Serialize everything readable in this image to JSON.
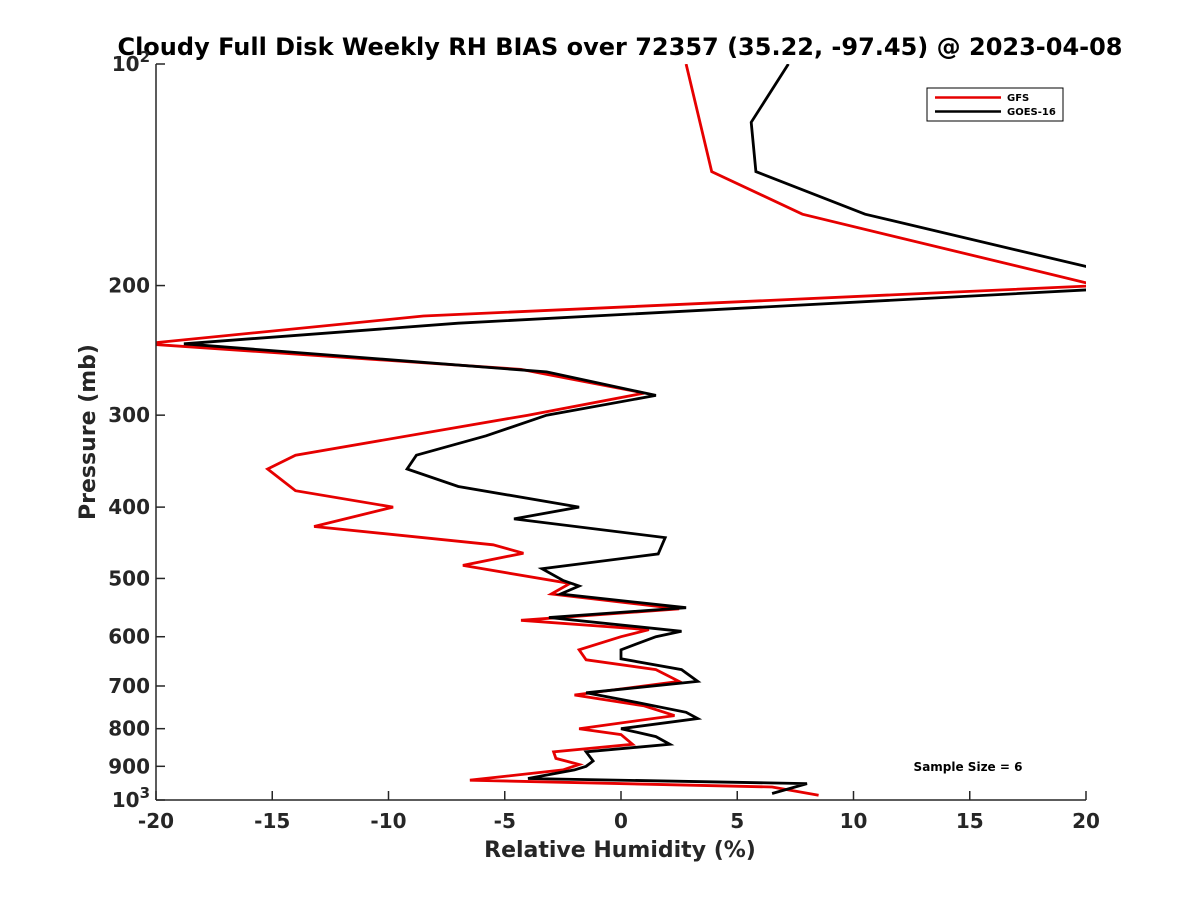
{
  "chart_data": {
    "type": "line",
    "title": "Cloudy Full Disk Weekly RH BIAS over 72357 (35.22, -97.45) @ 2023-04-08",
    "xlabel": "Relative Humidity (%)",
    "ylabel": "Pressure (mb)",
    "xlim": [
      -20,
      20
    ],
    "ylim": [
      100,
      1000
    ],
    "yscale": "log",
    "y_reversed": true,
    "grid": false,
    "legend_position": "top-right",
    "x_ticks": [
      -20,
      -15,
      -10,
      -5,
      0,
      5,
      10,
      15,
      20
    ],
    "x_tick_labels": [
      "-20",
      "-15",
      "-10",
      "-5",
      "0",
      "5",
      "10",
      "15",
      "20"
    ],
    "y_ticks": [
      100,
      200,
      300,
      400,
      500,
      600,
      700,
      800,
      900,
      1000
    ],
    "y_tick_labels": [
      {
        "base": "10",
        "sup": "2"
      },
      {
        "base": "200",
        "sup": ""
      },
      {
        "base": "300",
        "sup": ""
      },
      {
        "base": "400",
        "sup": ""
      },
      {
        "base": "500",
        "sup": ""
      },
      {
        "base": "600",
        "sup": ""
      },
      {
        "base": "700",
        "sup": ""
      },
      {
        "base": "800",
        "sup": ""
      },
      {
        "base": "900",
        "sup": ""
      },
      {
        "base": "10",
        "sup": "3"
      }
    ],
    "series": [
      {
        "name": "GFS",
        "color": "#e60000",
        "points": [
          {
            "x": 2.8,
            "y": 100
          },
          {
            "x": 3.9,
            "y": 140
          },
          {
            "x": 7.8,
            "y": 160
          },
          {
            "x": 20.5,
            "y": 200
          },
          {
            "x": -8.5,
            "y": 220
          },
          {
            "x": -20.5,
            "y": 240
          },
          {
            "x": -4.3,
            "y": 260
          },
          {
            "x": 1.0,
            "y": 280
          },
          {
            "x": -4.0,
            "y": 300
          },
          {
            "x": -14.0,
            "y": 340
          },
          {
            "x": -15.2,
            "y": 355
          },
          {
            "x": -14.0,
            "y": 380
          },
          {
            "x": -9.8,
            "y": 400
          },
          {
            "x": -13.2,
            "y": 425
          },
          {
            "x": -5.5,
            "y": 450
          },
          {
            "x": -4.2,
            "y": 462
          },
          {
            "x": -6.8,
            "y": 480
          },
          {
            "x": -2.2,
            "y": 508
          },
          {
            "x": -3.0,
            "y": 525
          },
          {
            "x": 2.5,
            "y": 550
          },
          {
            "x": -4.3,
            "y": 570
          },
          {
            "x": 1.2,
            "y": 587
          },
          {
            "x": 0.0,
            "y": 600
          },
          {
            "x": -1.8,
            "y": 625
          },
          {
            "x": -1.5,
            "y": 645
          },
          {
            "x": 1.5,
            "y": 665
          },
          {
            "x": 2.5,
            "y": 690
          },
          {
            "x": -2.0,
            "y": 720
          },
          {
            "x": 1.0,
            "y": 745
          },
          {
            "x": 2.3,
            "y": 768
          },
          {
            "x": -1.8,
            "y": 800
          },
          {
            "x": 0.0,
            "y": 815
          },
          {
            "x": 0.5,
            "y": 840
          },
          {
            "x": -2.9,
            "y": 860
          },
          {
            "x": -2.8,
            "y": 878
          },
          {
            "x": -1.8,
            "y": 895
          },
          {
            "x": -2.5,
            "y": 910
          },
          {
            "x": -6.5,
            "y": 940
          },
          {
            "x": 6.5,
            "y": 960
          },
          {
            "x": 8.5,
            "y": 985
          }
        ]
      },
      {
        "name": "GOES-16",
        "color": "#000000",
        "points": [
          {
            "x": 7.2,
            "y": 100
          },
          {
            "x": 5.6,
            "y": 120
          },
          {
            "x": 5.8,
            "y": 140
          },
          {
            "x": 10.5,
            "y": 160
          },
          {
            "x": 20.5,
            "y": 190
          },
          {
            "x": 21.0,
            "y": 202
          },
          {
            "x": -7.0,
            "y": 225
          },
          {
            "x": -18.8,
            "y": 240
          },
          {
            "x": -3.2,
            "y": 262
          },
          {
            "x": 1.5,
            "y": 282
          },
          {
            "x": -3.2,
            "y": 300
          },
          {
            "x": -5.8,
            "y": 320
          },
          {
            "x": -8.8,
            "y": 340
          },
          {
            "x": -9.2,
            "y": 355
          },
          {
            "x": -7.0,
            "y": 375
          },
          {
            "x": -1.8,
            "y": 400
          },
          {
            "x": -4.6,
            "y": 415
          },
          {
            "x": 1.9,
            "y": 440
          },
          {
            "x": 1.6,
            "y": 463
          },
          {
            "x": -3.4,
            "y": 485
          },
          {
            "x": -2.5,
            "y": 503
          },
          {
            "x": -1.8,
            "y": 512
          },
          {
            "x": -2.6,
            "y": 525
          },
          {
            "x": 2.8,
            "y": 548
          },
          {
            "x": -3.1,
            "y": 565
          },
          {
            "x": 2.6,
            "y": 590
          },
          {
            "x": 1.5,
            "y": 600
          },
          {
            "x": 0.0,
            "y": 625
          },
          {
            "x": 0.0,
            "y": 643
          },
          {
            "x": 2.6,
            "y": 665
          },
          {
            "x": 3.3,
            "y": 690
          },
          {
            "x": -1.5,
            "y": 715
          },
          {
            "x": 0.5,
            "y": 735
          },
          {
            "x": 2.8,
            "y": 760
          },
          {
            "x": 3.3,
            "y": 775
          },
          {
            "x": 0.0,
            "y": 800
          },
          {
            "x": 1.5,
            "y": 820
          },
          {
            "x": 2.1,
            "y": 840
          },
          {
            "x": -1.5,
            "y": 860
          },
          {
            "x": -1.2,
            "y": 885
          },
          {
            "x": -1.5,
            "y": 900
          },
          {
            "x": -2.0,
            "y": 910
          },
          {
            "x": -4.0,
            "y": 935
          },
          {
            "x": 8.0,
            "y": 950
          },
          {
            "x": 6.5,
            "y": 980
          }
        ]
      }
    ],
    "annotations": [
      "Sample Size = 6"
    ]
  }
}
